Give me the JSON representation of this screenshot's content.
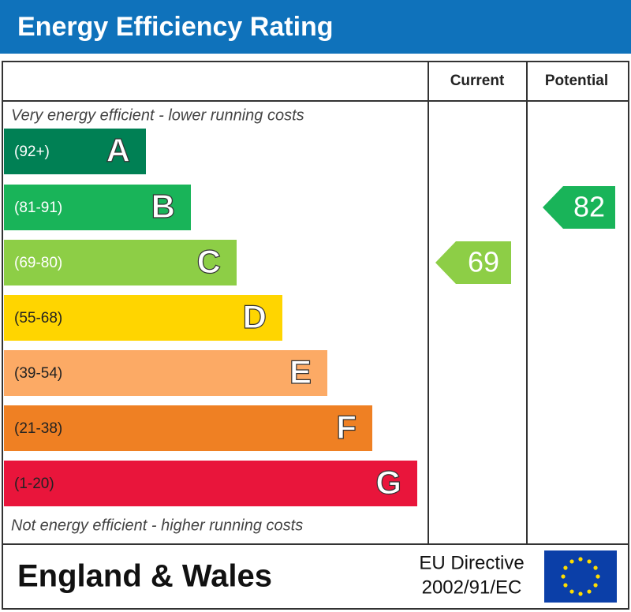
{
  "header": {
    "title": "Energy Efficiency Rating"
  },
  "columns": [
    "Current",
    "Potential"
  ],
  "top_note": "Very energy efficient - lower running costs",
  "bottom_note": "Not energy efficient - higher running costs",
  "bands": [
    {
      "range": "(92+)",
      "letter": "A",
      "color": "#008054"
    },
    {
      "range": "(81-91)",
      "letter": "B",
      "color": "#19b459"
    },
    {
      "range": "(69-80)",
      "letter": "C",
      "color": "#8dce46"
    },
    {
      "range": "(55-68)",
      "letter": "D",
      "color": "#ffd500"
    },
    {
      "range": "(39-54)",
      "letter": "E",
      "color": "#fcaa65"
    },
    {
      "range": "(21-38)",
      "letter": "F",
      "color": "#ef8023"
    },
    {
      "range": "(1-20)",
      "letter": "G",
      "color": "#e9153b"
    }
  ],
  "current": 69,
  "potential": 82,
  "footer": {
    "region": "England & Wales",
    "directive_line1": "EU Directive",
    "directive_line2": "2002/91/EC"
  }
}
